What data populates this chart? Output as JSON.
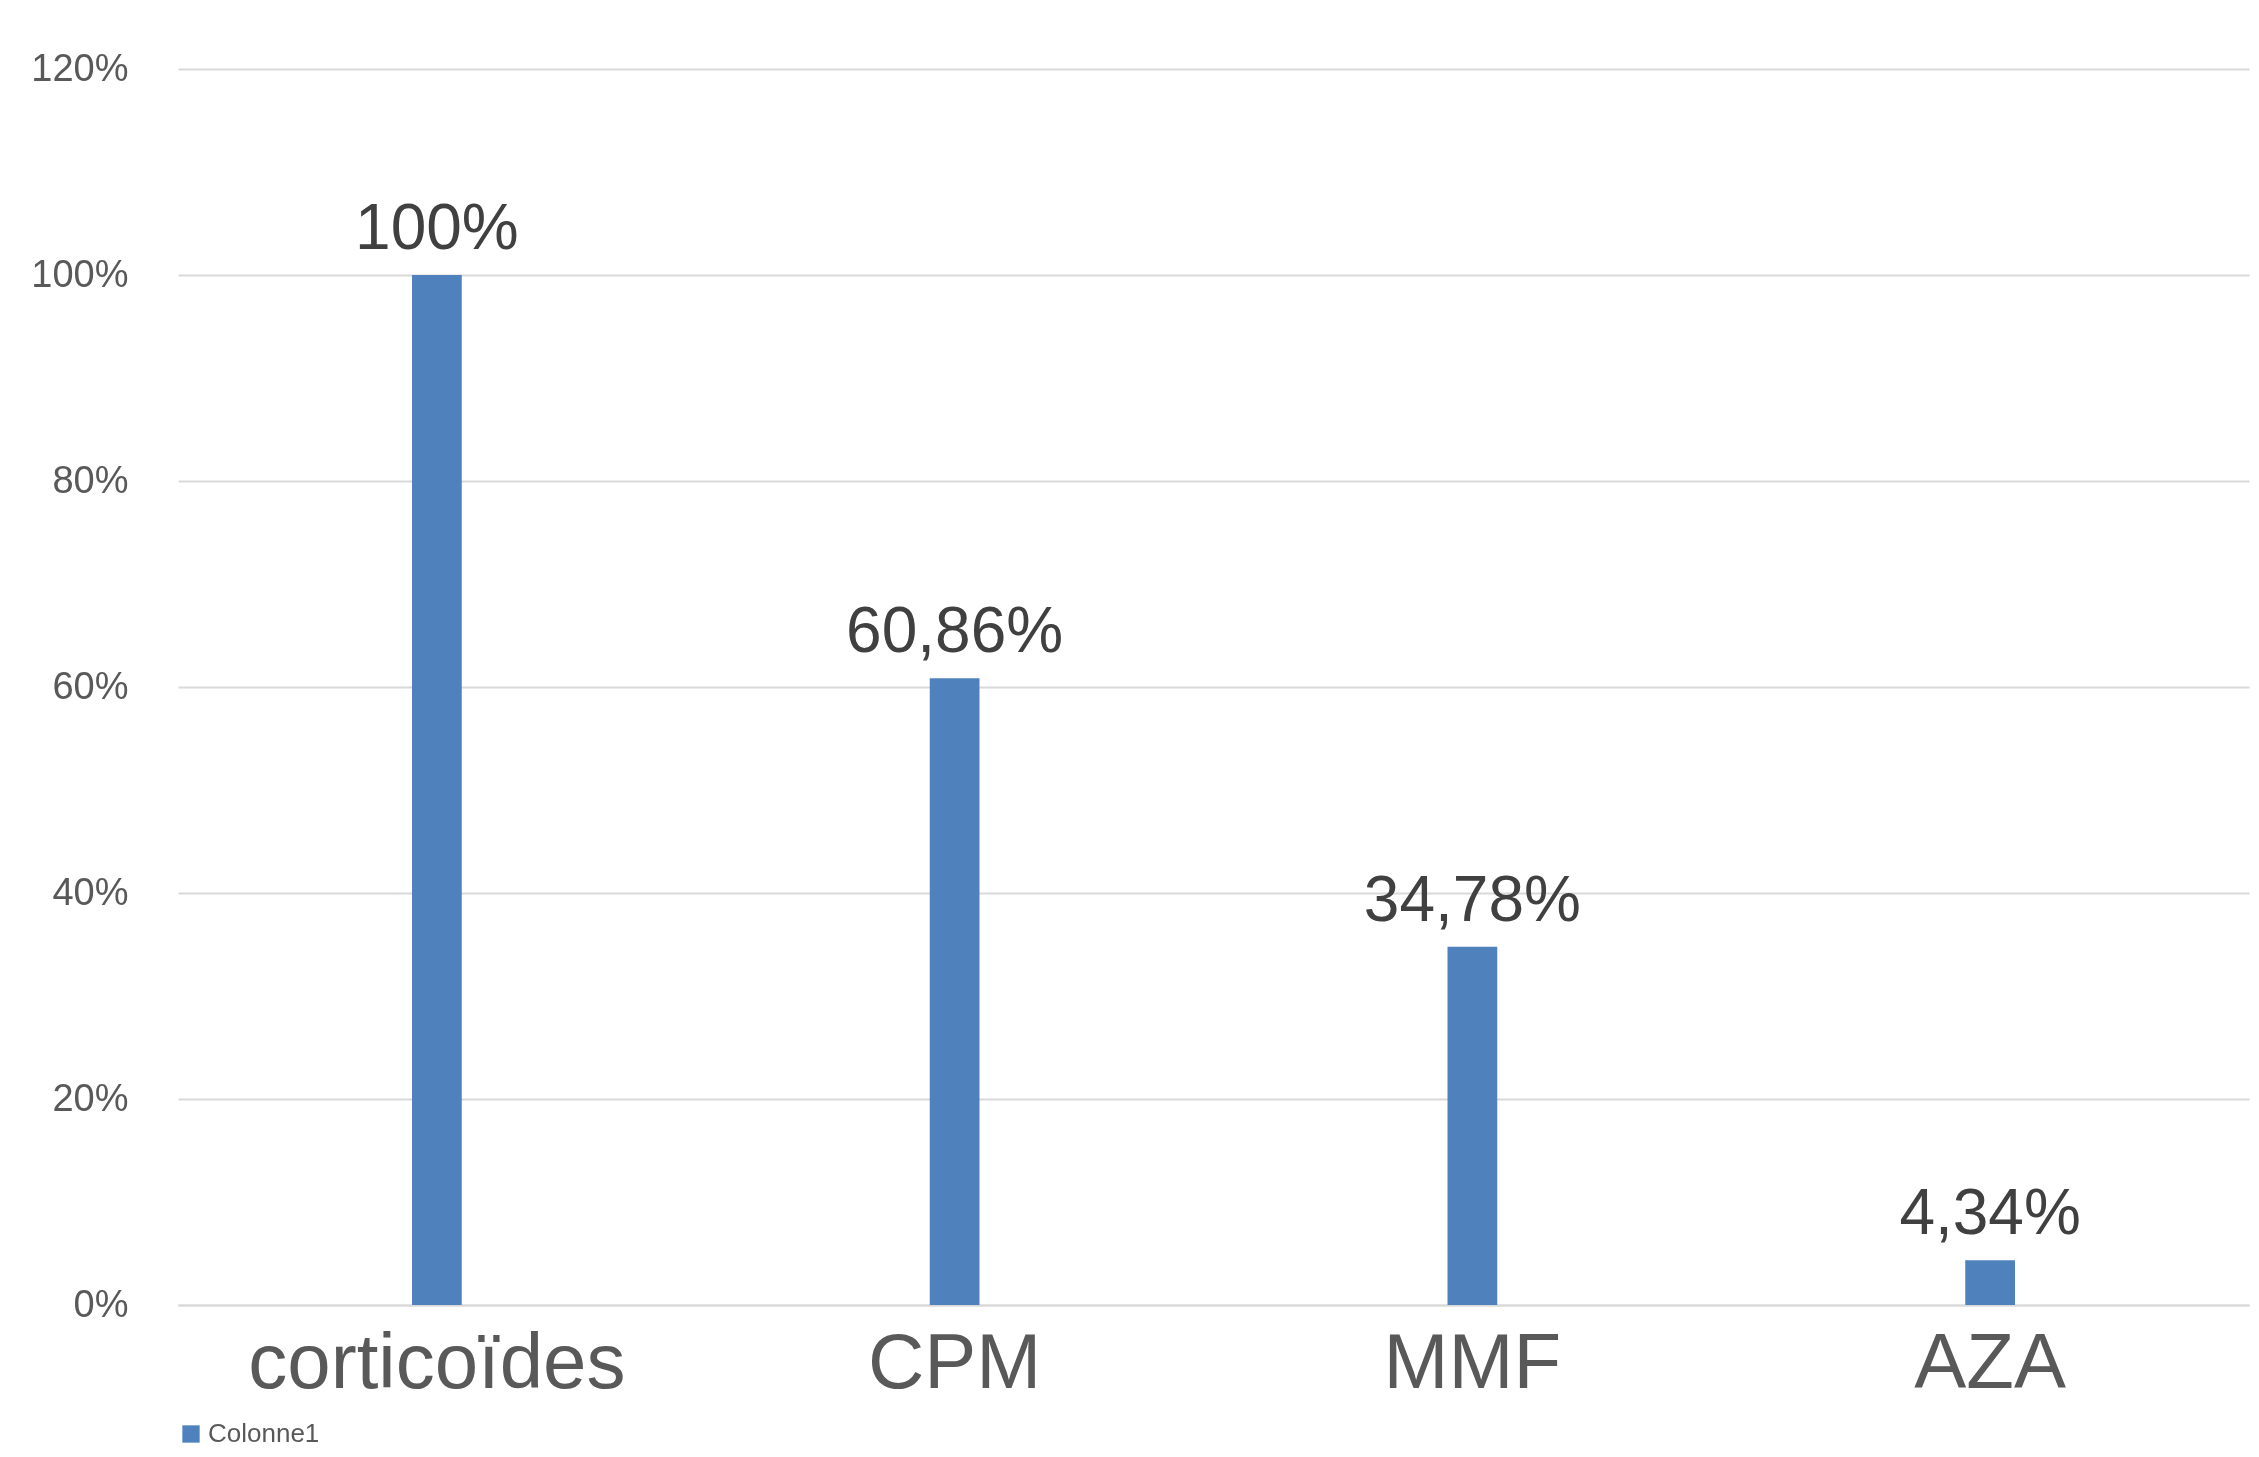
{
  "chart_data": {
    "type": "bar",
    "categories": [
      "corticoïdes",
      "CPM",
      "MMF",
      "AZA"
    ],
    "series": [
      {
        "name": "Colonne1",
        "color": "#4f81bd",
        "values": [
          100,
          60.86,
          34.78,
          4.34
        ],
        "value_labels": [
          "100%",
          "60,86%",
          "34,78%",
          "4,34%"
        ]
      }
    ],
    "ylim": [
      0,
      120
    ],
    "yticks": [
      {
        "value": 0,
        "label": "0%"
      },
      {
        "value": 20,
        "label": "20%"
      },
      {
        "value": 40,
        "label": "40%"
      },
      {
        "value": 60,
        "label": "60%"
      },
      {
        "value": 80,
        "label": "80%"
      },
      {
        "value": 100,
        "label": "100%"
      },
      {
        "value": 120,
        "label": "120%"
      }
    ],
    "grid": "y",
    "legend": "bottom"
  }
}
